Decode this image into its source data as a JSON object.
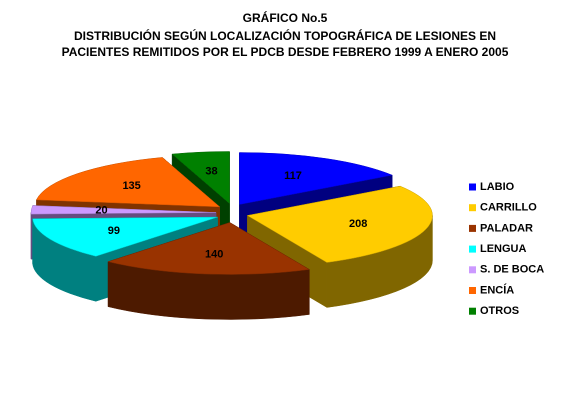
{
  "chart_data": {
    "type": "pie3d",
    "title": "GRÁFICO No.5",
    "subtitle": [
      "DISTRIBUCIÓN SEGÚN LOCALIZACIÓN  TOPOGRÁFICA DE LESIONES EN",
      "PACIENTES REMITIDOS POR EL PDCB DESDE  FEBRERO 1999 A ENERO 2005"
    ],
    "categories": [
      "LABIO",
      "CARRILLO",
      "PALADAR",
      "LENGUA",
      "S. DE BOCA",
      "ENCÍA",
      "OTROS"
    ],
    "values": [
      117,
      208,
      140,
      99,
      20,
      135,
      38
    ],
    "colors": [
      "#0000ff",
      "#ffcc00",
      "#993300",
      "#00ffff",
      "#cc99ff",
      "#ff6600",
      "#008000"
    ],
    "legend": "right"
  }
}
